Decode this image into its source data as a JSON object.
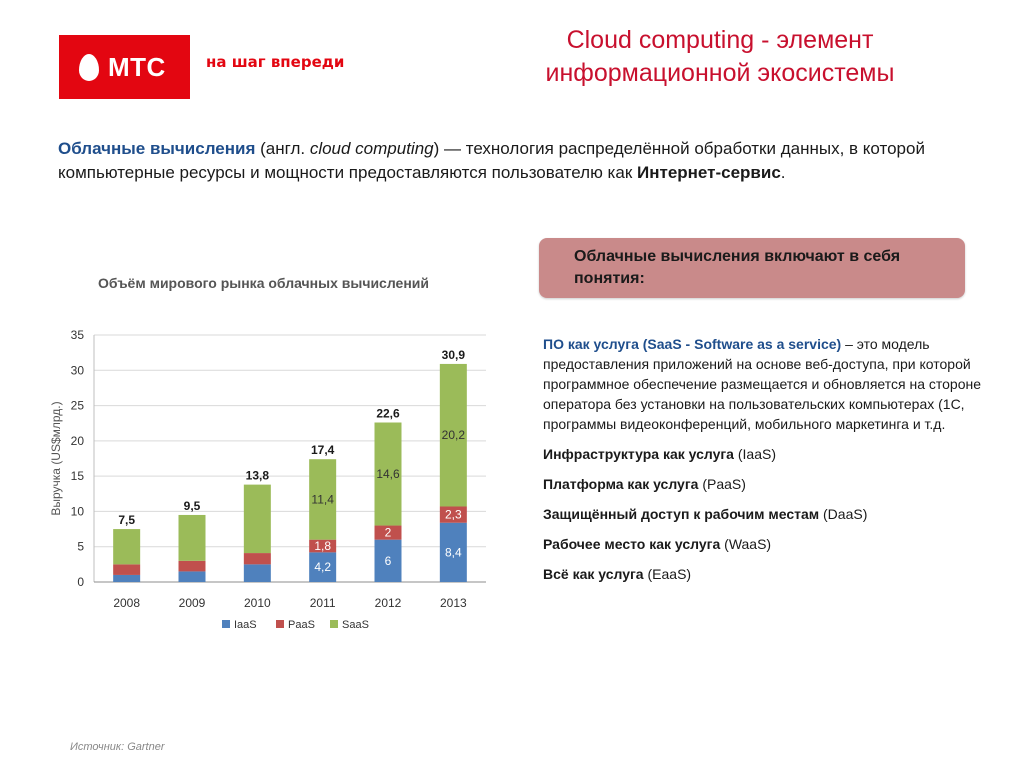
{
  "logo": {
    "text": "МТС",
    "slogan": "на шаг впереди"
  },
  "title": {
    "line1": "Cloud computing - элемент",
    "line2": "информационной экосистемы"
  },
  "definition": {
    "term": "Облачные вычисления",
    "part1": " (англ. ",
    "english": "cloud computing",
    "part2": ") — технология распределённой обработки данных, в которой компьютерные ресурсы и мощности предоставляются пользователю как ",
    "bold_end": "Интернет-сервис",
    "period": "."
  },
  "chart_title": "Объём мирового рынка облачных вычислений",
  "chart_data": {
    "type": "bar",
    "stacked": true,
    "categories": [
      "2008",
      "2009",
      "2010",
      "2011",
      "2012",
      "2013"
    ],
    "series": [
      {
        "name": "IaaS",
        "color": "#4f81bd",
        "values": [
          1.0,
          1.5,
          2.5,
          4.2,
          6,
          8.4
        ],
        "labels": [
          "",
          "",
          "",
          "4,2",
          "6",
          "8,4"
        ]
      },
      {
        "name": "PaaS",
        "color": "#c0504d",
        "values": [
          1.5,
          1.5,
          1.6,
          1.8,
          2,
          2.3
        ],
        "labels": [
          "",
          "",
          "",
          "1,8",
          "2",
          "2,3"
        ]
      },
      {
        "name": "SaaS",
        "color": "#9bbb59",
        "values": [
          5.0,
          6.5,
          9.7,
          11.4,
          14.6,
          20.2
        ],
        "labels": [
          "",
          "",
          "",
          "11,4",
          "14,6",
          "20,2"
        ]
      }
    ],
    "totals": [
      "7,5",
      "9,5",
      "13,8",
      "17,4",
      "22,6",
      "30,9"
    ],
    "ylabel": "Выручка (US$млрд.)",
    "ylim": [
      0,
      35
    ],
    "yticks": [
      "0",
      "5",
      "10",
      "15",
      "20",
      "25",
      "30",
      "35"
    ],
    "grid": true,
    "legend_position": "bottom"
  },
  "panel": {
    "header": "Облачные вычисления включают в себя понятия:"
  },
  "concepts": {
    "first_term": "ПО как услуга (SaaS - Software as a service)",
    "first_desc": " – это модель предоставления приложений на основе веб-доступа, при которой программное обеспечение размещается и обновляется на стороне оператора без установки на пользовательских компьютерах (1С, программы видеоконференций, мобильного маркетинга и т.д.",
    "items": [
      {
        "term": "Инфраструктура как услуга",
        "abbr": " (IaaS)"
      },
      {
        "term": "Платформа как услуга",
        "abbr": " (PaaS)"
      },
      {
        "term": "Защищённый доступ к рабочим местам",
        "abbr": " (DaaS)"
      },
      {
        "term": "Рабочее место как услуга",
        "abbr": " (WaaS)"
      },
      {
        "term": "Всё как услуга",
        "abbr": " (EaaS)"
      }
    ]
  },
  "source": "Источник: Gartner"
}
